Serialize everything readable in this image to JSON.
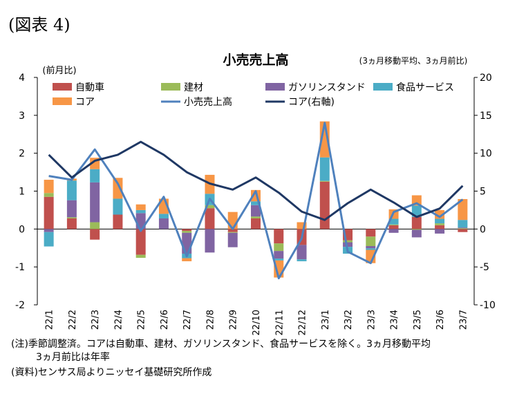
{
  "figure_label": "(図表 4)",
  "notes": [
    "(注)季節調整済。コアは自動車、建材、ガソリンスタンド、食品サービスを除く。3ヵ月移動平均",
    "3ヵ月前比は年率",
    "(資料)センサス局よりニッセイ基礎研究所作成"
  ],
  "chart_data": {
    "type": "bar",
    "title": "小売売上高",
    "subtitle": "(3ヵ月移動平均、3ヵ月前比)",
    "ylabel_left": "(前月比)",
    "categories": [
      "22/1",
      "22/2",
      "22/3",
      "22/4",
      "22/5",
      "22/6",
      "22/7",
      "22/8",
      "22/9",
      "22/10",
      "22/11",
      "22/12",
      "23/1",
      "23/2",
      "23/3",
      "23/4",
      "23/5",
      "23/6",
      "23/7"
    ],
    "left_axis": {
      "min": -2,
      "max": 4,
      "ticks": [
        -2,
        -1,
        0,
        1,
        2,
        3,
        4
      ]
    },
    "right_axis": {
      "min": -10,
      "max": 20,
      "ticks": [
        -10,
        -5,
        0,
        5,
        10,
        15,
        20
      ]
    },
    "grid": false,
    "legend_position": "top",
    "bar_series": [
      {
        "name": "自動車",
        "color": "#c0504d",
        "values": [
          0.85,
          0.28,
          -0.28,
          0.38,
          -0.68,
          0.0,
          -0.05,
          0.55,
          -0.08,
          0.28,
          -0.38,
          -0.42,
          1.25,
          -0.3,
          -0.2,
          0.1,
          0.32,
          0.1,
          -0.08
        ]
      },
      {
        "name": "建材",
        "color": "#9bbb59",
        "values": [
          0.1,
          0.03,
          0.18,
          0.0,
          -0.08,
          0.0,
          -0.05,
          0.08,
          -0.02,
          0.05,
          -0.2,
          0.0,
          0.02,
          -0.05,
          -0.25,
          0.02,
          -0.02,
          0.05,
          0.02
        ]
      },
      {
        "name": "ガソリンスタンド",
        "color": "#8064a2",
        "values": [
          -0.08,
          0.45,
          1.05,
          0.0,
          0.42,
          0.28,
          -0.55,
          -0.62,
          -0.38,
          0.3,
          -0.2,
          -0.38,
          0.0,
          -0.12,
          -0.06,
          -0.1,
          -0.2,
          -0.12,
          0.02
        ]
      },
      {
        "name": "食品サービス",
        "color": "#4bacc6",
        "values": [
          -0.38,
          0.52,
          0.35,
          0.42,
          0.08,
          0.12,
          -0.12,
          0.3,
          0.0,
          0.1,
          -0.05,
          -0.05,
          0.62,
          -0.18,
          -0.04,
          0.15,
          0.3,
          0.12,
          0.2
        ]
      },
      {
        "name": "コア",
        "color": "#f79646",
        "values": [
          0.35,
          0.05,
          0.3,
          0.55,
          0.15,
          0.4,
          -0.08,
          0.5,
          0.45,
          0.3,
          -0.45,
          0.18,
          0.95,
          0.0,
          -0.35,
          0.25,
          0.27,
          0.23,
          0.55
        ]
      }
    ],
    "line_series": [
      {
        "name": "小売売上高",
        "color": "#4f81bd",
        "axis": "left",
        "values": [
          1.4,
          1.3,
          2.1,
          1.2,
          -0.05,
          0.85,
          -0.72,
          0.8,
          0.0,
          1.0,
          -1.3,
          -0.25,
          2.8,
          -0.6,
          -0.9,
          0.45,
          0.68,
          0.32,
          0.78
        ]
      },
      {
        "name": "コア(右軸)",
        "color": "#1f3864",
        "axis": "right",
        "values": [
          9.8,
          6.8,
          9.0,
          9.8,
          11.5,
          9.8,
          7.5,
          6.0,
          5.2,
          6.8,
          4.8,
          2.3,
          1.2,
          3.4,
          5.2,
          3.5,
          1.6,
          2.7,
          5.7
        ]
      }
    ]
  }
}
